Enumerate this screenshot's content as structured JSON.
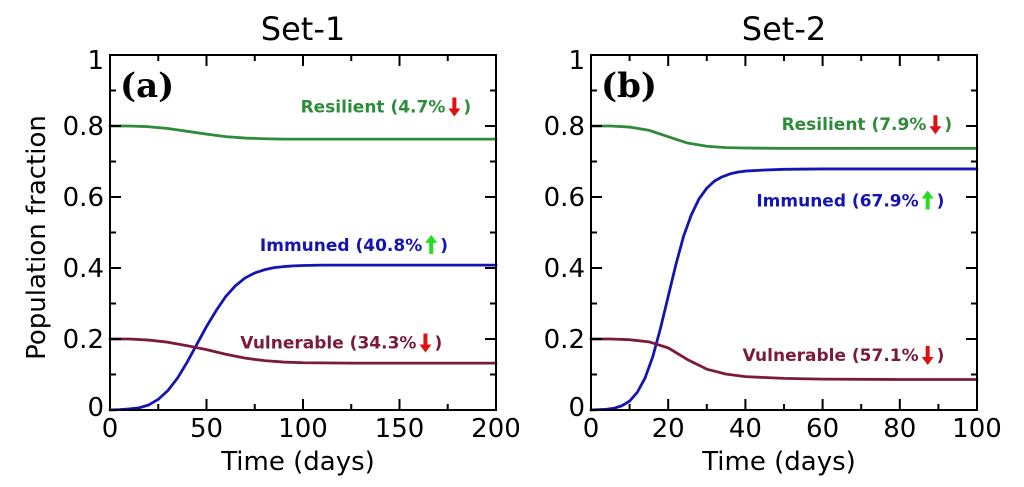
{
  "chart_data": [
    {
      "type": "line",
      "title": "Set-1",
      "panel_label": "(a)",
      "xlabel": "Time (days)",
      "ylabel": "Population fraction",
      "xlim": [
        0,
        200
      ],
      "ylim": [
        0,
        1
      ],
      "xticks": [
        "0",
        "50",
        "100",
        "150",
        "200"
      ],
      "yticks": [
        "0",
        "0.2",
        "0.4",
        "0.6",
        "0.8",
        "1"
      ],
      "series": [
        {
          "color": "#2e8b3a",
          "x": [
            0,
            10,
            20,
            30,
            40,
            50,
            60,
            70,
            80,
            90,
            100,
            125,
            150,
            175,
            200
          ],
          "y": [
            0.8,
            0.8,
            0.798,
            0.793,
            0.785,
            0.777,
            0.77,
            0.766,
            0.764,
            0.763,
            0.763,
            0.763,
            0.763,
            0.763,
            0.763
          ]
        },
        {
          "color": "#1414b4",
          "x": [
            0,
            5,
            10,
            15,
            20,
            25,
            30,
            35,
            40,
            45,
            50,
            55,
            60,
            65,
            70,
            75,
            80,
            85,
            90,
            95,
            100,
            110,
            120,
            150,
            200
          ],
          "y": [
            0,
            0.001,
            0.003,
            0.006,
            0.014,
            0.03,
            0.055,
            0.09,
            0.135,
            0.185,
            0.235,
            0.28,
            0.32,
            0.35,
            0.372,
            0.386,
            0.395,
            0.401,
            0.404,
            0.406,
            0.407,
            0.408,
            0.408,
            0.408,
            0.408
          ]
        },
        {
          "color": "#7b1a3a",
          "x": [
            0,
            10,
            20,
            30,
            40,
            50,
            60,
            70,
            80,
            90,
            100,
            125,
            150,
            175,
            200
          ],
          "y": [
            0.2,
            0.2,
            0.197,
            0.191,
            0.181,
            0.17,
            0.157,
            0.146,
            0.139,
            0.135,
            0.133,
            0.132,
            0.132,
            0.132,
            0.132
          ]
        }
      ],
      "annotations": [
        {
          "name": "Resilient",
          "text": "Resilient (4.7%",
          "close": ")",
          "arrow": "down",
          "color": "#2e8b3a",
          "x": 180,
          "y": 0.855
        },
        {
          "name": "Immuned",
          "text": "Immuned (40.8%",
          "close": ")",
          "arrow": "up",
          "color": "#1414b4",
          "x": 168,
          "y": 0.465
        },
        {
          "name": "Vulnerable",
          "text": "Vulnerable (34.3%",
          "close": ")",
          "arrow": "down",
          "color": "#7b1a3a",
          "x": 165,
          "y": 0.19
        }
      ]
    },
    {
      "type": "line",
      "title": "Set-2",
      "panel_label": "(b)",
      "xlabel": "Time (days)",
      "ylabel": "",
      "xlim": [
        0,
        100
      ],
      "ylim": [
        0,
        1
      ],
      "xticks": [
        "0",
        "20",
        "40",
        "60",
        "80",
        "100"
      ],
      "yticks": [
        "0",
        "0.2",
        "0.4",
        "0.6",
        "0.8",
        "1"
      ],
      "series": [
        {
          "color": "#2e8b3a",
          "x": [
            0,
            5,
            10,
            15,
            20,
            25,
            30,
            35,
            40,
            50,
            60,
            80,
            100
          ],
          "y": [
            0.8,
            0.8,
            0.797,
            0.788,
            0.77,
            0.752,
            0.743,
            0.739,
            0.738,
            0.737,
            0.737,
            0.737,
            0.737
          ]
        },
        {
          "color": "#1414b4",
          "x": [
            0,
            2,
            4,
            6,
            8,
            10,
            12,
            14,
            16,
            18,
            20,
            22,
            24,
            26,
            28,
            30,
            32,
            34,
            36,
            38,
            40,
            45,
            50,
            60,
            80,
            100
          ],
          "y": [
            0,
            0.001,
            0.002,
            0.005,
            0.012,
            0.025,
            0.05,
            0.09,
            0.15,
            0.23,
            0.32,
            0.41,
            0.49,
            0.55,
            0.595,
            0.625,
            0.645,
            0.657,
            0.665,
            0.67,
            0.673,
            0.676,
            0.678,
            0.679,
            0.679,
            0.679
          ]
        },
        {
          "color": "#7b1a3a",
          "x": [
            0,
            5,
            10,
            15,
            20,
            25,
            30,
            35,
            40,
            50,
            60,
            80,
            100
          ],
          "y": [
            0.2,
            0.2,
            0.198,
            0.192,
            0.175,
            0.142,
            0.115,
            0.101,
            0.094,
            0.089,
            0.087,
            0.086,
            0.086
          ]
        }
      ],
      "annotations": [
        {
          "name": "Resilient",
          "text": "Resilient (7.9%",
          "close": ")",
          "arrow": "down",
          "color": "#2e8b3a",
          "x": 90,
          "y": 0.805
        },
        {
          "name": "Immuned",
          "text": "Immuned (67.9%",
          "close": ")",
          "arrow": "up",
          "color": "#1414b4",
          "x": 88,
          "y": 0.59
        },
        {
          "name": "Vulnerable",
          "text": "Vulnerable (57.1%",
          "close": ")",
          "arrow": "down",
          "color": "#7b1a3a",
          "x": 88,
          "y": 0.155
        }
      ]
    }
  ]
}
